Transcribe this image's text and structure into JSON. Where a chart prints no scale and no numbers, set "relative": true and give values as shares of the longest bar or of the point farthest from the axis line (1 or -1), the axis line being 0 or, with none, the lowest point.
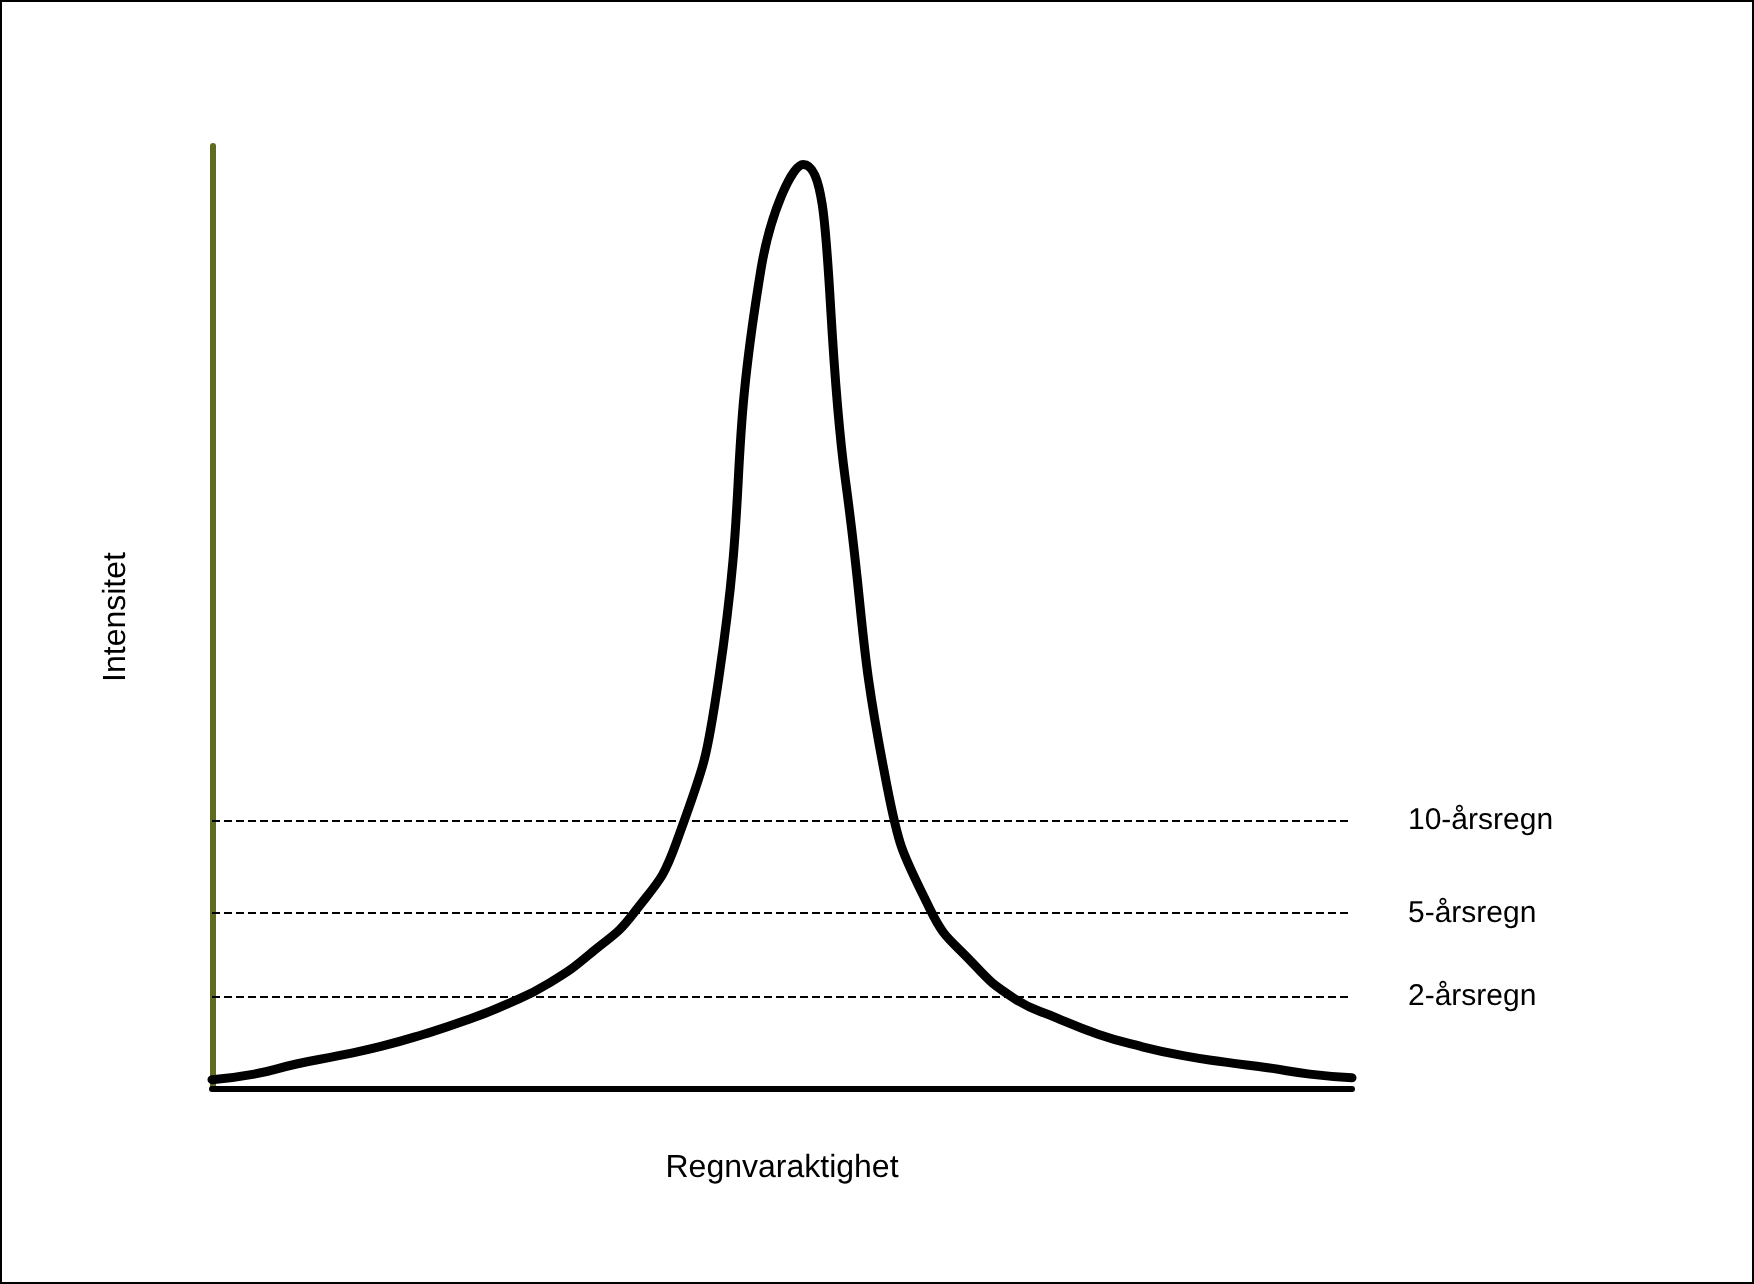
{
  "chart_data": {
    "type": "line",
    "relative": true,
    "xlabel": "Regnvaraktighet",
    "ylabel": "Intensitet",
    "categories": [
      null,
      null,
      null,
      null,
      null,
      null,
      null,
      null,
      null,
      null,
      null,
      null,
      null,
      null,
      null,
      null,
      null,
      null,
      null,
      null,
      null,
      null,
      null,
      null,
      null,
      null,
      null,
      null
    ],
    "series": [
      {
        "color": "#000000",
        "values": [
          0.009,
          0.015,
          0.026,
          0.035,
          0.045,
          0.058,
          0.073,
          0.091,
          0.114,
          0.147,
          0.19,
          0.266,
          0.443,
          0.886,
          1,
          0.659,
          0.324,
          0.194,
          0.136,
          0.097,
          0.076,
          0.058,
          0.045,
          0.035,
          0.028,
          0.022,
          0.015,
          0.011
        ]
      }
    ],
    "ref_lines": [
      {
        "axis": "y",
        "value": 0.287,
        "label": "10-årsregn",
        "line_style": "dashed",
        "color": "#000000"
      },
      {
        "axis": "y",
        "value": 0.188,
        "label": "5-årsregn",
        "line_style": "dashed",
        "color": "#000000"
      },
      {
        "axis": "y",
        "value": 0.097,
        "label": "2-årsregn",
        "line_style": "dashed",
        "color": "#000000"
      }
    ],
    "grid": false,
    "marker": "none",
    "line_style": "solid"
  }
}
